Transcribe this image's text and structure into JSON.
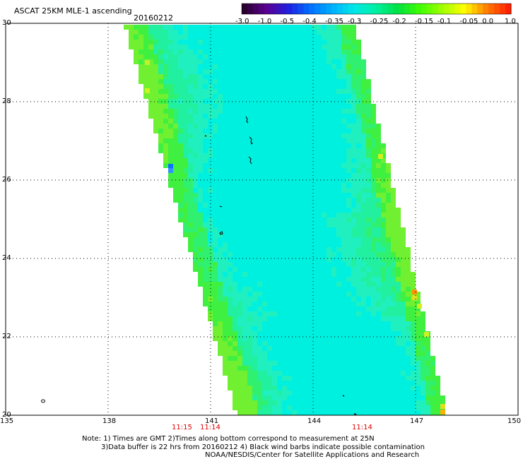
{
  "header": {
    "title": "ASCAT 25KM MLE-1 ascending",
    "date": "20160212"
  },
  "colorbar": {
    "labels": [
      "-3.0",
      "-1.0",
      "-0.5",
      "-0.4",
      "-0.35",
      "-0.3",
      "-0.25",
      "-0.2",
      "-0.15",
      "-0.1",
      "-0.05",
      "0.0",
      "1.0"
    ],
    "colors": [
      "#2a0030",
      "#5a0090",
      "#2020e0",
      "#0070ff",
      "#00b0ff",
      "#00e8e8",
      "#00f0a0",
      "#00e040",
      "#40ff00",
      "#a0ff00",
      "#ffff00",
      "#ff8000",
      "#ff2000"
    ]
  },
  "axes": {
    "lon_labels": [
      "135",
      "138",
      "141",
      "144",
      "147",
      "150"
    ],
    "lat_labels": [
      "30",
      "28",
      "26",
      "24",
      "22",
      "20"
    ]
  },
  "times": [
    "11:15",
    "11:14",
    "11:14"
  ],
  "notes": {
    "line1": "Note: 1) Times are GMT 2)Times along bottom correspond to measurement at 25N",
    "line2": "3)Data buffer is 22 hrs from 20160212 4) Black wind barbs indicate possible contamination",
    "line3": "NOAA/NESDIS/Center for Satellite Applications and Research"
  }
}
